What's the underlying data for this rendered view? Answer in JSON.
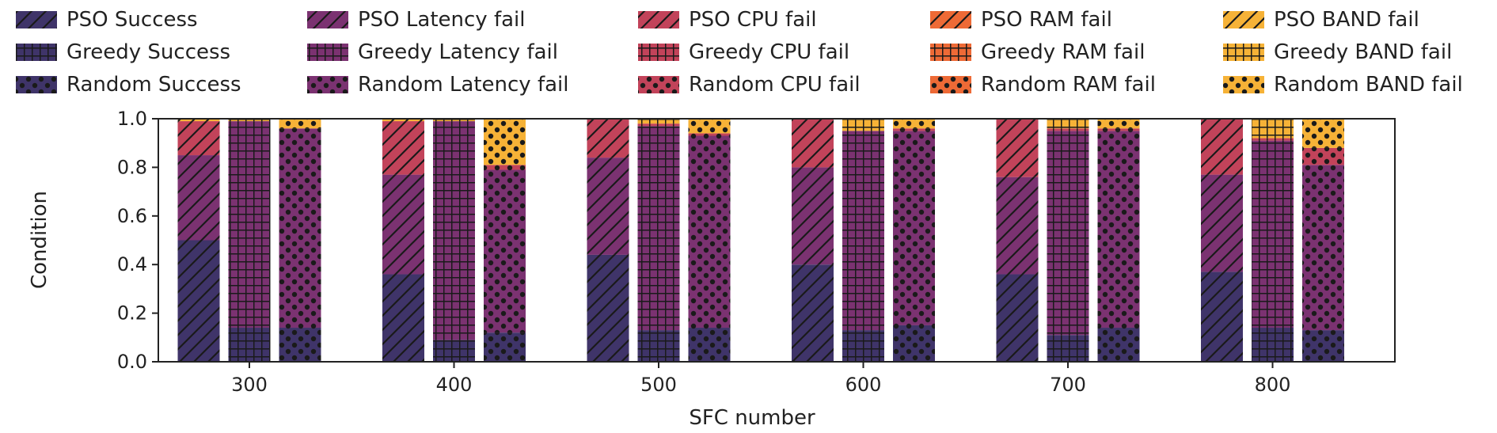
{
  "chart_data": {
    "type": "bar",
    "stacked": true,
    "title": "",
    "xlabel": "SFC number",
    "ylabel": "Condition",
    "ylim": [
      0,
      1.0
    ],
    "yticks": [
      "0.0",
      "0.2",
      "0.4",
      "0.6",
      "0.8",
      "1.0"
    ],
    "categories": [
      "300",
      "400",
      "500",
      "600",
      "700",
      "800"
    ],
    "methods": [
      "PSO",
      "Greedy",
      "Random"
    ],
    "conditions": [
      "Success",
      "Latency fail",
      "CPU fail",
      "RAM fail",
      "BAND fail"
    ],
    "condition_colors": [
      "#3f3469",
      "#7b3271",
      "#c2435a",
      "#ee6a36",
      "#f6b237"
    ],
    "method_patterns": [
      "diagonal",
      "grid",
      "dots"
    ],
    "legend_position": "top",
    "legend": [
      "PSO Success",
      "PSO Latency fail",
      "PSO CPU fail",
      "PSO RAM fail",
      "PSO BAND fail",
      "Greedy Success",
      "Greedy Latency fail",
      "Greedy CPU fail",
      "Greedy RAM fail",
      "Greedy BAND fail",
      "Random Success",
      "Random Latency fail",
      "Random CPU fail",
      "Random RAM fail",
      "Random BAND fail"
    ],
    "values": {
      "PSO": {
        "Success": [
          0.5,
          0.36,
          0.44,
          0.4,
          0.36,
          0.37
        ],
        "Latency fail": [
          0.35,
          0.41,
          0.4,
          0.4,
          0.4,
          0.4
        ],
        "CPU fail": [
          0.14,
          0.22,
          0.16,
          0.2,
          0.24,
          0.23
        ],
        "RAM fail": [
          0.0,
          0.0,
          0.0,
          0.0,
          0.0,
          0.0
        ],
        "BAND fail": [
          0.01,
          0.01,
          0.0,
          0.0,
          0.0,
          0.0
        ]
      },
      "Greedy": {
        "Success": [
          0.14,
          0.09,
          0.13,
          0.13,
          0.11,
          0.14
        ],
        "Latency fail": [
          0.85,
          0.9,
          0.84,
          0.82,
          0.84,
          0.77
        ],
        "CPU fail": [
          0.0,
          0.0,
          0.01,
          0.0,
          0.01,
          0.01
        ],
        "RAM fail": [
          0.0,
          0.0,
          0.0,
          0.0,
          0.0,
          0.0
        ],
        "BAND fail": [
          0.01,
          0.01,
          0.02,
          0.05,
          0.04,
          0.08
        ]
      },
      "Random": {
        "Success": [
          0.14,
          0.12,
          0.14,
          0.15,
          0.14,
          0.13
        ],
        "Latency fail": [
          0.82,
          0.67,
          0.79,
          0.8,
          0.81,
          0.68
        ],
        "CPU fail": [
          0.0,
          0.02,
          0.01,
          0.01,
          0.01,
          0.07
        ],
        "RAM fail": [
          0.0,
          0.0,
          0.0,
          0.0,
          0.0,
          0.0
        ],
        "BAND fail": [
          0.04,
          0.19,
          0.06,
          0.04,
          0.04,
          0.12
        ]
      }
    }
  }
}
